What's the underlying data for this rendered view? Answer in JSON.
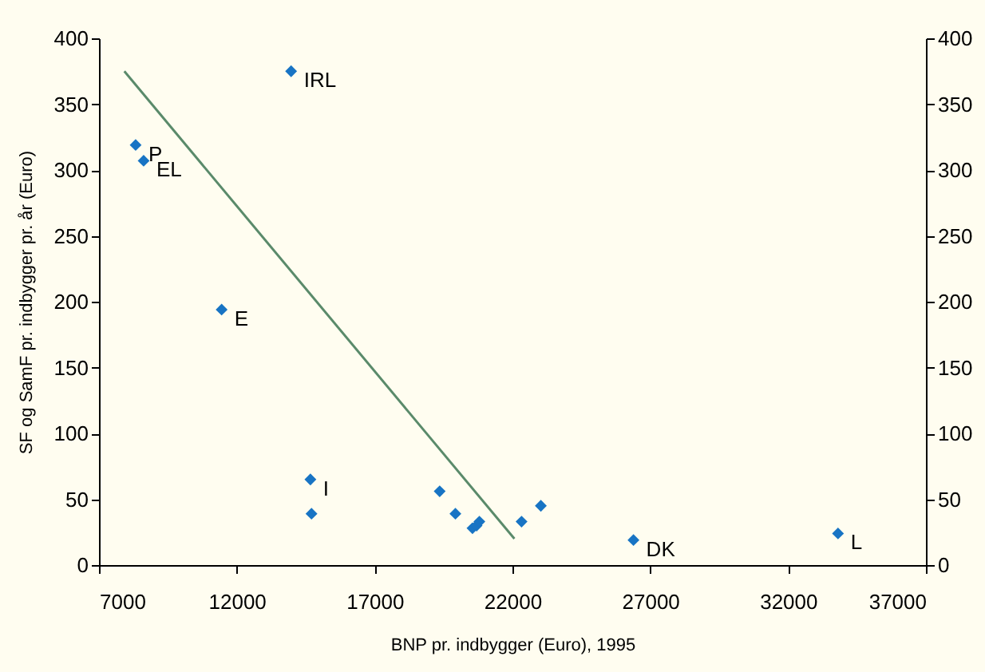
{
  "chart_data": {
    "type": "scatter",
    "xlabel": "BNP pr. indbygger (Euro), 1995",
    "ylabel": "SF og SamF pr. indbygger pr. år (Euro)",
    "xlim": [
      7000,
      37000
    ],
    "xticks": [
      7000,
      12000,
      17000,
      22000,
      27000,
      32000,
      37000
    ],
    "ylim": [
      0,
      400
    ],
    "yticks": [
      0,
      50,
      100,
      150,
      200,
      250,
      300,
      350,
      400
    ],
    "y2lim": [
      0,
      400
    ],
    "y2ticks": [
      0,
      50,
      100,
      150,
      200,
      250,
      300,
      350,
      400
    ],
    "grid": false,
    "series": [
      {
        "color": "#1874c4",
        "marker": "diamond",
        "x": [
          13970,
          8330,
          8620,
          11450,
          14670,
          14710,
          19360,
          19930,
          20550,
          20700,
          20800,
          22330,
          23030,
          26390,
          33810
        ],
        "values": [
          375,
          319,
          307,
          194,
          65,
          39,
          56,
          39,
          28,
          30,
          33,
          33,
          45,
          19,
          24
        ]
      },
      {
        "type": "line",
        "color": "#5a8a6a",
        "marker": "none",
        "line_style": "solid",
        "x": [
          7920,
          22070
        ],
        "values": [
          375,
          20
        ]
      }
    ],
    "annotations": [
      {
        "text": "IRL",
        "x": 13970,
        "y": 375
      },
      {
        "text": "P",
        "x": 8330,
        "y": 319
      },
      {
        "text": "EL",
        "x": 8620,
        "y": 307
      },
      {
        "text": "E",
        "x": 11450,
        "y": 194
      },
      {
        "text": "I",
        "x": 14670,
        "y": 65
      },
      {
        "text": "DK",
        "x": 26390,
        "y": 19
      },
      {
        "text": "L",
        "x": 33810,
        "y": 24
      }
    ]
  }
}
